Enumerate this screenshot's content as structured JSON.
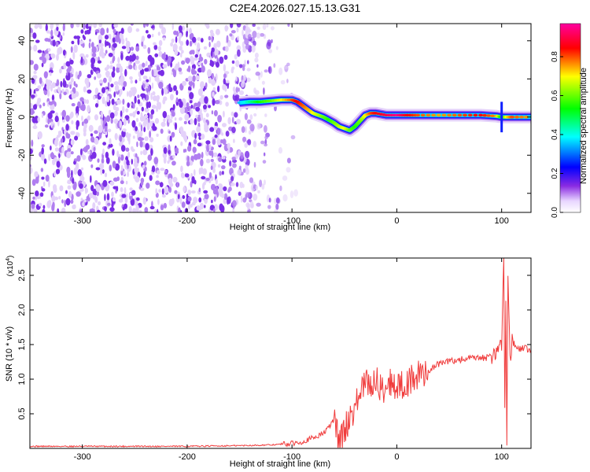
{
  "figure": {
    "title": "C2E4.2026.027.15.13.G31"
  },
  "chart_data": [
    {
      "type": "heatmap",
      "title": "C2E4.2026.027.15.13.G31",
      "xlabel": "Height of straight line (km)",
      "ylabel": "Frequency (Hz)",
      "xlim": [
        -350,
        128
      ],
      "ylim": [
        -50,
        49
      ],
      "xticks": [
        -300,
        -200,
        -100,
        0,
        100
      ],
      "yticks": [
        -40,
        -20,
        0,
        20,
        40
      ],
      "colorbar": {
        "label": "Normalized spectral amplitude",
        "range": [
          0.0,
          0.97
        ],
        "ticks": [
          0.0,
          0.2,
          0.4,
          0.6,
          0.8
        ],
        "colormap": [
          "#ffffff",
          "#e8d6ff",
          "#8a2be2",
          "#0000ff",
          "#00ffff",
          "#00ff00",
          "#ffff00",
          "#ff0000",
          "#ff00a0"
        ]
      },
      "noise_region": {
        "x_from": -350,
        "x_to": -110,
        "amplitude": 0.1
      },
      "signal_track": {
        "x": [
          -150,
          -140,
          -130,
          -120,
          -110,
          -100,
          -95,
          -90,
          -85,
          -80,
          -75,
          -70,
          -65,
          -60,
          -55,
          -50,
          -45,
          -40,
          -35,
          -30,
          -25,
          -20,
          -10,
          0,
          10,
          20,
          40,
          60,
          80,
          95,
          100,
          105,
          110,
          128
        ],
        "frequency": [
          7.5,
          8,
          8,
          8.5,
          9,
          9,
          8,
          6,
          4,
          2,
          1,
          0,
          -1.5,
          -3,
          -5,
          -6,
          -7,
          -5,
          -2,
          1,
          2,
          2,
          1,
          1,
          1,
          1,
          1,
          1,
          1,
          0.5,
          0,
          0,
          0,
          0
        ],
        "amplitude": [
          0.35,
          0.45,
          0.55,
          0.6,
          0.7,
          0.8,
          0.85,
          0.8,
          0.75,
          0.7,
          0.65,
          0.6,
          0.55,
          0.6,
          0.65,
          0.7,
          0.6,
          0.55,
          0.6,
          0.7,
          0.8,
          0.85,
          0.9,
          0.95,
          0.85,
          0.8,
          0.75,
          0.8,
          0.85,
          0.75,
          0.5,
          0.7,
          0.8,
          0.75
        ]
      },
      "spike": {
        "x": 100,
        "frequency_from": -8,
        "frequency_to": 8
      },
      "grid": false
    },
    {
      "type": "line",
      "xlabel": "Height of straight line (km)",
      "ylabel": "SNR (10 * v/v)",
      "y_multiplier": "(x10",
      "y_multiplier_exp": "4",
      "xlim": [
        -350,
        128
      ],
      "ylim": [
        0,
        2.75
      ],
      "xticks": [
        -300,
        -200,
        -100,
        0,
        100
      ],
      "yticks": [
        0.5,
        1.0,
        1.5,
        2.0,
        2.5
      ],
      "ytick_labels": [
        "0.5",
        "1.0",
        "1.5",
        "2.0",
        "2.5"
      ],
      "grid": false,
      "series": [
        {
          "color": "#f03c3c",
          "x": [
            -350,
            -300,
            -250,
            -200,
            -150,
            -120,
            -100,
            -90,
            -80,
            -70,
            -65,
            -60,
            -58,
            -55,
            -50,
            -45,
            -40,
            -35,
            -30,
            -25,
            -20,
            -15,
            -10,
            -5,
            0,
            10,
            20,
            30,
            40,
            50,
            60,
            70,
            80,
            90,
            95,
            98,
            100,
            102,
            103,
            104,
            105,
            106,
            108,
            110,
            115,
            120,
            128
          ],
          "y": [
            0.03,
            0.03,
            0.03,
            0.03,
            0.04,
            0.05,
            0.07,
            0.1,
            0.15,
            0.22,
            0.3,
            0.42,
            0.3,
            0.12,
            0.25,
            0.45,
            0.6,
            0.78,
            0.95,
            0.9,
            1.0,
            0.85,
            0.9,
            0.98,
            0.88,
            0.95,
            1.05,
            1.12,
            1.22,
            1.26,
            1.28,
            1.3,
            1.3,
            1.32,
            1.38,
            1.55,
            1.45,
            2.75,
            0.6,
            2.2,
            0.1,
            2.5,
            1.3,
            1.55,
            1.42,
            1.45,
            1.42
          ]
        }
      ]
    }
  ]
}
